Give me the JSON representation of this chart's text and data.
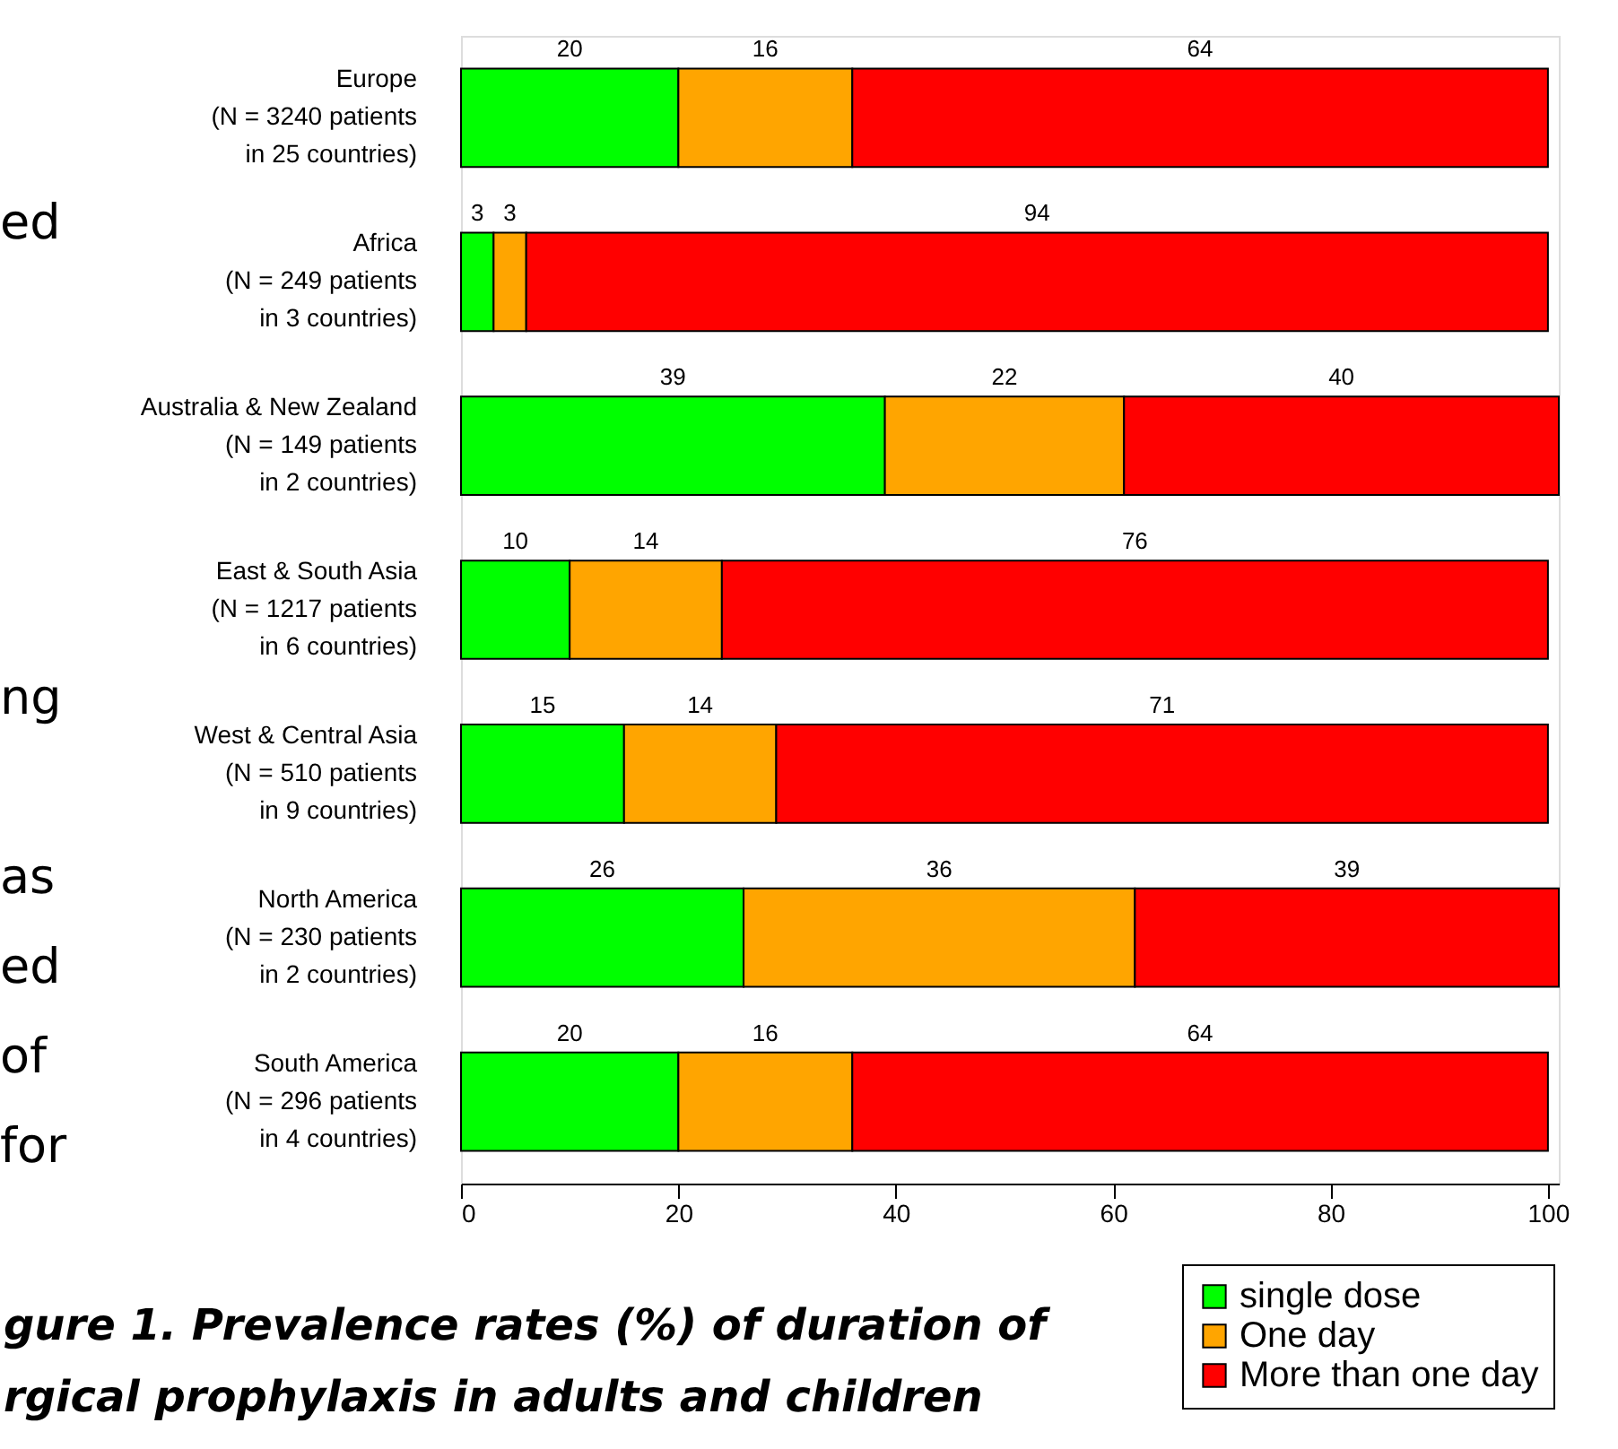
{
  "chart_data": {
    "type": "bar",
    "orientation": "horizontal",
    "stacked": true,
    "categories": [
      "Europe\n(N = 3240 patients\nin 25 countries)",
      "Africa\n(N = 249 patients\nin 3 countries)",
      "Australia & New Zealand\n(N = 149 patients\nin 2 countries)",
      "East & South Asia\n(N = 1217 patients\nin 6 countries)",
      "West & Central Asia\n(N = 510 patients\nin 9 countries)",
      "North America\n(N = 230 patients\nin 2 countries)",
      "South America\n(N = 296 patients\nin 4 countries)"
    ],
    "series": [
      {
        "name": "single dose",
        "color": "#00ff00",
        "values": [
          20,
          3,
          39,
          10,
          15,
          26,
          20
        ]
      },
      {
        "name": "One day",
        "color": "#ffa500",
        "values": [
          16,
          3,
          22,
          14,
          14,
          36,
          16
        ]
      },
      {
        "name": "More than one day",
        "color": "#ff0000",
        "values": [
          64,
          94,
          40,
          76,
          71,
          39,
          64
        ]
      }
    ],
    "xlim": [
      0,
      101
    ],
    "xticks": [
      0,
      20,
      40,
      60,
      80,
      100
    ],
    "data_labels": true,
    "legend": "bottom right",
    "grid": false,
    "annotations": [
      "ed",
      "ng",
      "as",
      "ed",
      "of",
      "for",
      "gure 1. Prevalence rates (%) of duration of",
      "rgical prophylaxis in adults and children"
    ]
  }
}
